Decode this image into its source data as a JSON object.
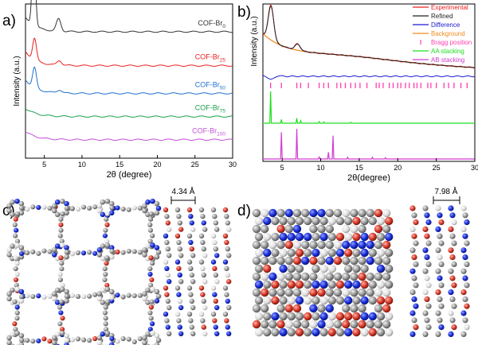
{
  "panels": {
    "a": "a)",
    "b": "b)",
    "c": "c)",
    "d": "d)"
  },
  "structures": {
    "c_spacing": "4.34 Å",
    "d_spacing": "7.98 Å"
  },
  "chart_data": [
    {
      "id": "a",
      "type": "line",
      "xlabel": "2θ (degree)",
      "ylabel": "Intensity (a.u.)",
      "xlim": [
        2.5,
        30
      ],
      "xticks": [
        5,
        10,
        15,
        20,
        25,
        30
      ],
      "series": [
        {
          "name": "COF-Br",
          "sub": "0",
          "color": "#333333",
          "baseline": 0.82,
          "peaks": [
            [
              3.6,
              0.52,
              0.22
            ],
            [
              6.9,
              0.08,
              0.3
            ]
          ]
        },
        {
          "name": "COF-Br",
          "sub": "25",
          "color": "#e8201e",
          "baseline": 0.6,
          "peaks": [
            [
              3.7,
              0.14,
              0.25
            ],
            [
              7.0,
              0.03,
              0.3
            ]
          ]
        },
        {
          "name": "COF-Br",
          "sub": "50",
          "color": "#1f6fd0",
          "baseline": 0.42,
          "peaks": [
            [
              3.7,
              0.13,
              0.25
            ],
            [
              7.0,
              0.02,
              0.3
            ]
          ]
        },
        {
          "name": "COF-Br",
          "sub": "75",
          "color": "#1aa04a",
          "baseline": 0.27,
          "peaks": []
        },
        {
          "name": "COF-Br",
          "sub": "100",
          "color": "#c24fd6",
          "baseline": 0.12,
          "peaks": []
        }
      ]
    },
    {
      "id": "b",
      "type": "line",
      "xlabel": "2θ(degree)",
      "ylabel": "Intensity (a.u.)",
      "xlim": [
        2.5,
        30
      ],
      "xticks": [
        5,
        10,
        15,
        20,
        25,
        30
      ],
      "legend": [
        {
          "label": "Experimental",
          "color": "#e8201e",
          "marker": "line"
        },
        {
          "label": "Refined",
          "color": "#222222",
          "marker": "line"
        },
        {
          "label": "Difference",
          "color": "#1a1ad0",
          "marker": "line"
        },
        {
          "label": "Background",
          "color": "#f08a1c",
          "marker": "line"
        },
        {
          "label": "Bragg position",
          "color": "#ff3fb0",
          "marker": "tick"
        },
        {
          "label": "AA stacking",
          "color": "#1ee01e",
          "marker": "line"
        },
        {
          "label": "AB stacking",
          "color": "#d23bd2",
          "marker": "line"
        }
      ],
      "bragg_positions": [
        3.5,
        4.9,
        6.9,
        7.4,
        8.4,
        9.8,
        10.4,
        11.0,
        12.1,
        12.6,
        13.2,
        13.9,
        14.5,
        15.1,
        16.0,
        17.2,
        17.6,
        18.1,
        18.9,
        19.4,
        20.0,
        20.4,
        21.0,
        21.5,
        22.1,
        22.5,
        23.0,
        23.9,
        24.3,
        25.0,
        26.0,
        26.6,
        27.3,
        28.2,
        29.0
      ],
      "aa_peaks": [
        [
          3.5,
          1.0
        ],
        [
          4.9,
          0.12
        ],
        [
          6.9,
          0.16
        ],
        [
          7.4,
          0.08
        ],
        [
          9.8,
          0.05
        ],
        [
          10.4,
          0.04
        ],
        [
          13.9,
          0.03
        ]
      ],
      "ab_peaks": [
        [
          4.9,
          0.8
        ],
        [
          6.9,
          0.9
        ],
        [
          9.8,
          0.06
        ],
        [
          11.0,
          0.2
        ],
        [
          11.6,
          0.7
        ],
        [
          13.5,
          0.05
        ],
        [
          16.7,
          0.05
        ],
        [
          18.4,
          0.04
        ]
      ]
    }
  ]
}
